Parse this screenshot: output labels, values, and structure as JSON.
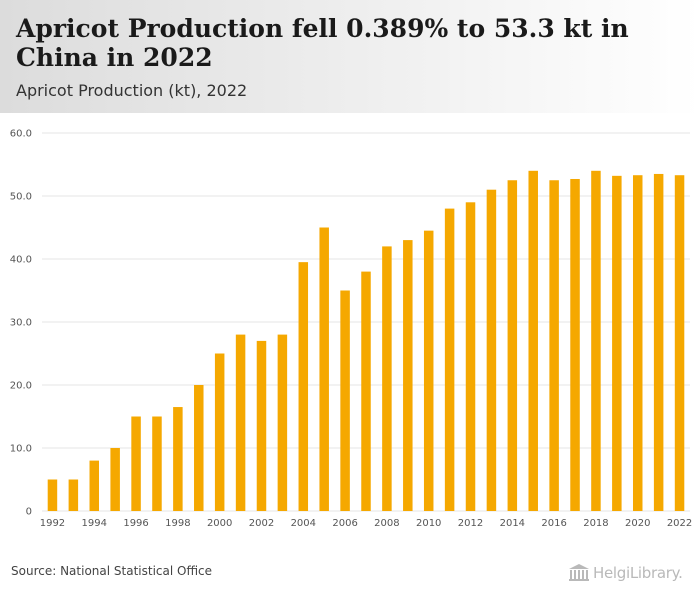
{
  "header": {
    "title": "Apricot Production fell 0.389% to 53.3 kt in China in 2022",
    "subtitle": "Apricot Production (kt), 2022"
  },
  "footer": {
    "source": "Source: National Statistical Office",
    "logo_text": "HelgiLibrary."
  },
  "colors": {
    "bar": "#F5A800",
    "grid": "#e6e6e6",
    "axis_text": "#555555"
  },
  "chart_data": {
    "type": "bar",
    "title": "Apricot Production fell 0.389% to 53.3 kt in China in 2022",
    "subtitle": "Apricot Production (kt), 2022",
    "xlabel": "",
    "ylabel": "",
    "ylim": [
      0,
      60
    ],
    "yticks": [
      "0",
      "10.0",
      "20.0",
      "30.0",
      "40.0",
      "50.0",
      "60.0"
    ],
    "categories": [
      "1992",
      "1993",
      "1994",
      "1995",
      "1996",
      "1997",
      "1998",
      "1999",
      "2000",
      "2001",
      "2002",
      "2003",
      "2004",
      "2005",
      "2006",
      "2007",
      "2008",
      "2009",
      "2010",
      "2011",
      "2012",
      "2013",
      "2014",
      "2015",
      "2016",
      "2017",
      "2018",
      "2019",
      "2020",
      "2021",
      "2022"
    ],
    "xtick_labels": [
      "1992",
      "1994",
      "1996",
      "1998",
      "2000",
      "2002",
      "2004",
      "2006",
      "2008",
      "2010",
      "2012",
      "2014",
      "2016",
      "2018",
      "2020",
      "2022"
    ],
    "values": [
      5.0,
      5.0,
      8.0,
      10.0,
      15.0,
      15.0,
      16.5,
      20.0,
      25.0,
      28.0,
      27.0,
      28.0,
      39.5,
      45.0,
      35.0,
      38.0,
      42.0,
      43.0,
      44.5,
      48.0,
      49.0,
      51.0,
      52.5,
      54.0,
      52.5,
      52.7,
      54.0,
      53.2,
      53.3,
      53.5,
      53.3
    ],
    "grid": true,
    "legend": "none"
  }
}
